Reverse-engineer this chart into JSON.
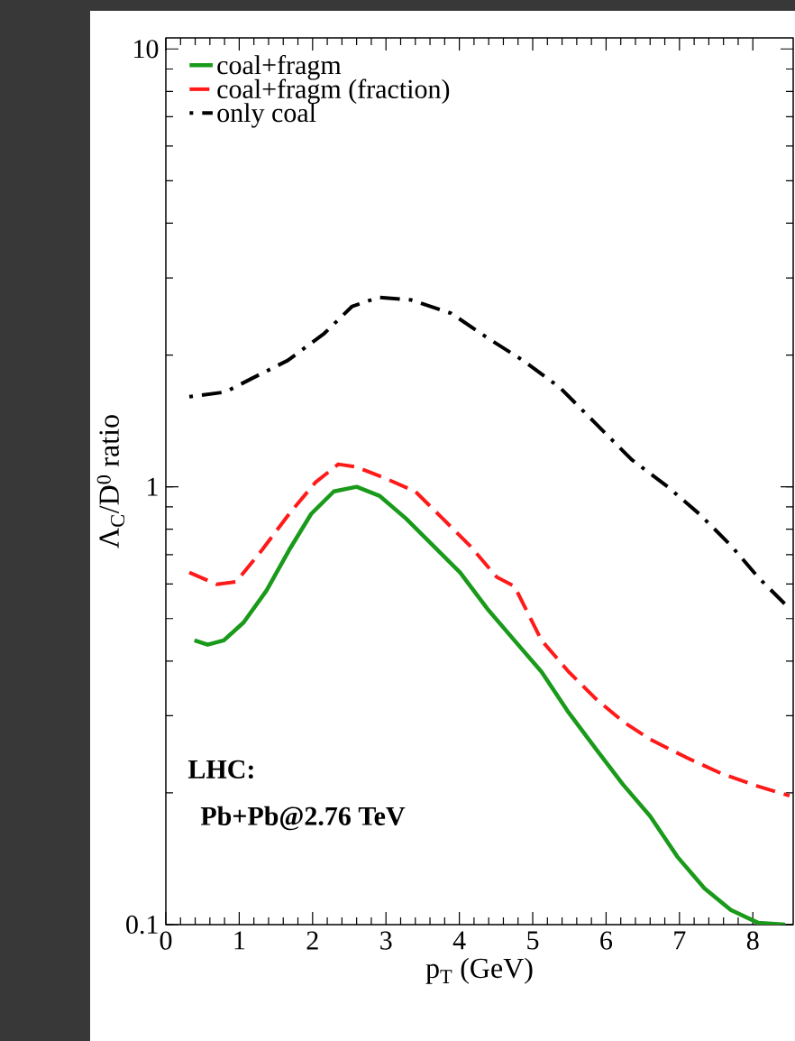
{
  "chart_data": {
    "type": "line",
    "xlabel": "p$_{T}$ (GeV)",
    "ylabel": "Λ$_{C}$/D$^{0}$ ratio",
    "log": "y",
    "xlim": [
      0,
      8.55
    ],
    "ylim": [
      0.1,
      10.6
    ],
    "xticks": [
      0,
      1,
      2,
      3,
      4,
      5,
      6,
      7,
      8
    ],
    "yticks": [
      0.1,
      1,
      10
    ],
    "legend": "top left",
    "annotations": [
      "LHC:",
      "Pb+Pb@2.76 TeV"
    ],
    "series": [
      {
        "name": "coal+fragm",
        "color": "#1a9a1a",
        "line_style": "solid",
        "x": [
          0.39,
          0.57,
          0.79,
          1.06,
          1.37,
          1.68,
          1.98,
          2.29,
          2.6,
          2.91,
          3.27,
          3.64,
          4.01,
          4.38,
          4.75,
          5.12,
          5.49,
          5.86,
          6.23,
          6.6,
          6.97,
          7.34,
          7.7,
          8.07,
          8.44
        ],
        "values": [
          0.446,
          0.436,
          0.446,
          0.49,
          0.579,
          0.717,
          0.867,
          0.976,
          1.0,
          0.954,
          0.847,
          0.735,
          0.637,
          0.527,
          0.446,
          0.378,
          0.305,
          0.252,
          0.209,
          0.177,
          0.143,
          0.121,
          0.108,
          0.101,
          0.1
        ]
      },
      {
        "name": "coal+fragm (fraction)",
        "color": "#ff1a1a",
        "line_style": "dashed",
        "x": [
          0.32,
          0.69,
          0.96,
          1.31,
          1.68,
          2.04,
          2.35,
          2.6,
          2.97,
          3.4,
          3.77,
          4.14,
          4.51,
          4.75,
          5.12,
          5.49,
          5.86,
          6.23,
          6.6,
          7.09,
          7.58,
          8.07,
          8.5
        ],
        "values": [
          0.637,
          0.599,
          0.607,
          0.717,
          0.867,
          1.024,
          1.126,
          1.11,
          1.049,
          0.976,
          0.847,
          0.735,
          0.622,
          0.593,
          0.446,
          0.378,
          0.328,
          0.291,
          0.265,
          0.241,
          0.221,
          0.207,
          0.197
        ]
      },
      {
        "name": "only coal",
        "color": "#000000",
        "line_style": "dashdot",
        "x": [
          0.32,
          0.81,
          1.17,
          1.66,
          2.16,
          2.54,
          2.9,
          3.34,
          3.89,
          4.38,
          4.87,
          5.37,
          5.86,
          6.35,
          6.84,
          7.27,
          7.7,
          8.07,
          8.5
        ],
        "values": [
          1.607,
          1.646,
          1.767,
          1.943,
          2.241,
          2.584,
          2.709,
          2.672,
          2.49,
          2.19,
          1.943,
          1.685,
          1.394,
          1.153,
          1.0,
          0.867,
          0.735,
          0.622,
          0.527
        ]
      }
    ]
  }
}
